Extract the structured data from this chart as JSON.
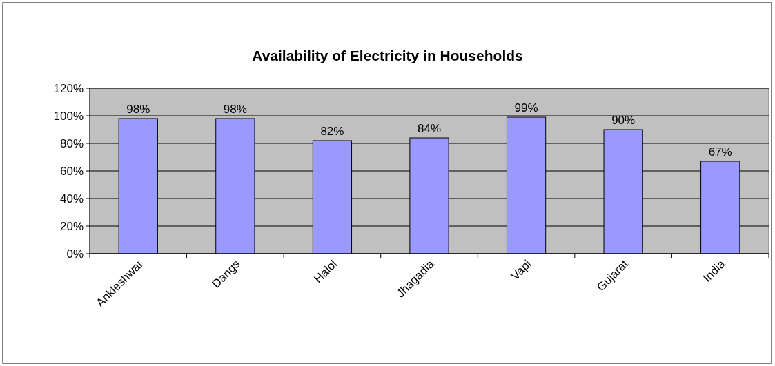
{
  "chart_data": {
    "type": "bar",
    "title": "Availability of Electricity in Households",
    "categories": [
      "Ankleshwar",
      "Dangs",
      "Halol",
      "Jhagadia",
      "Vapi",
      "Gujarat",
      "India"
    ],
    "values": [
      98,
      98,
      82,
      84,
      99,
      90,
      67
    ],
    "value_labels": [
      "98%",
      "98%",
      "82%",
      "84%",
      "99%",
      "90%",
      "67%"
    ],
    "color": "#9999ff",
    "ylim": [
      0,
      120
    ],
    "yticks": [
      {
        "value": 0,
        "label": "0%"
      },
      {
        "value": 20,
        "label": "20%"
      },
      {
        "value": 40,
        "label": "40%"
      },
      {
        "value": 60,
        "label": "60%"
      },
      {
        "value": 80,
        "label": "80%"
      },
      {
        "value": 100,
        "label": "100%"
      },
      {
        "value": 120,
        "label": "120%"
      }
    ],
    "grid": "y"
  }
}
